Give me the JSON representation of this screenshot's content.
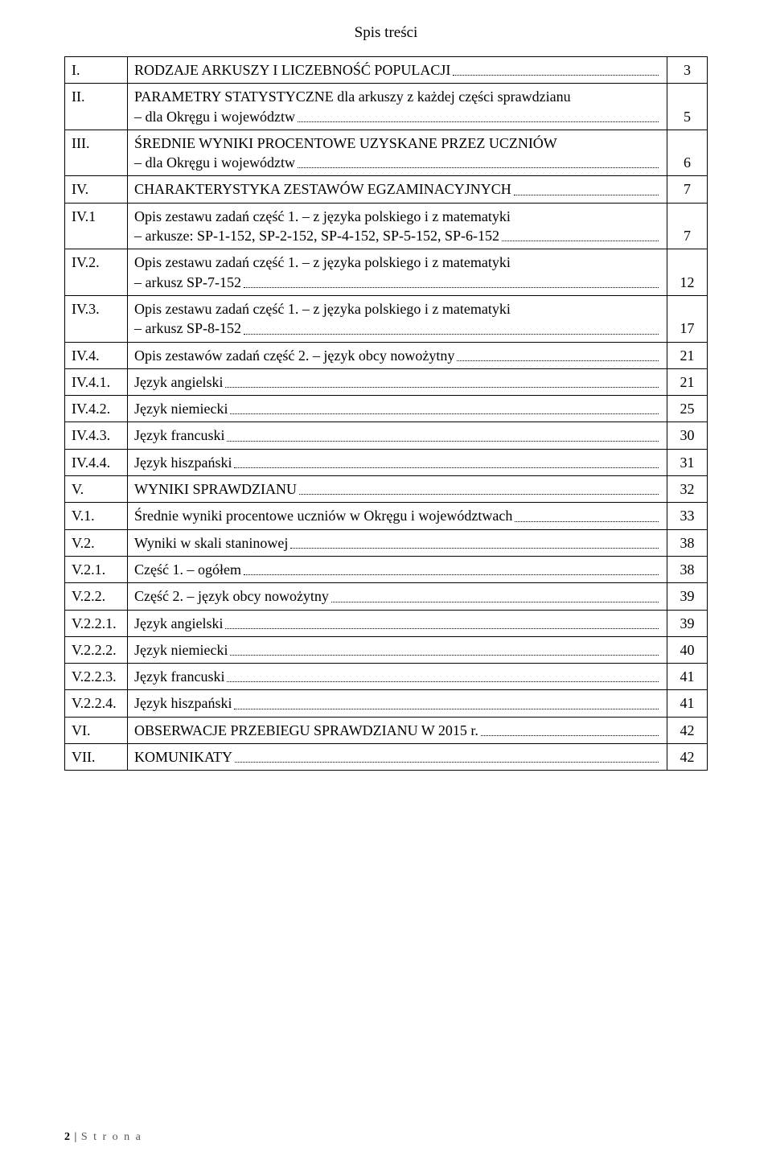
{
  "title": "Spis treści",
  "toc": [
    {
      "num": "I.",
      "text": "RODZAJE ARKUSZY I LICZEBNOŚĆ POPULACJI",
      "page": "3"
    },
    {
      "num": "II.",
      "text": "PARAMETRY STATYSTYCZNE dla arkuszy z każdej części sprawdzianu – dla Okręgu i województw",
      "page": "5",
      "wrap": true
    },
    {
      "num": "III.",
      "text": "ŚREDNIE WYNIKI PROCENTOWE UZYSKANE PRZEZ UCZNIÓW – dla Okręgu i województw",
      "page": "6",
      "wrap": true
    },
    {
      "num": "IV.",
      "text": "CHARAKTERYSTYKA ZESTAWÓW EGZAMINACYJNYCH",
      "page": "7"
    },
    {
      "num": "IV.1",
      "text": "Opis zestawu zadań część 1. – z języka polskiego i z matematyki – arkusze: SP-1-152, SP-2-152, SP-4-152, SP-5-152, SP-6-152",
      "page": "7",
      "wrap": true
    },
    {
      "num": "IV.2.",
      "text": "Opis zestawu zadań część 1. – z języka polskiego i z matematyki – arkusz SP-7-152",
      "page": "12",
      "wrap": true
    },
    {
      "num": "IV.3.",
      "text": "Opis zestawu zadań część 1. – z języka polskiego i z matematyki – arkusz SP-8-152",
      "page": "17",
      "wrap": true
    },
    {
      "num": "IV.4.",
      "text": "Opis zestawów zadań część 2. – język obcy nowożytny",
      "page": "21"
    },
    {
      "num": "IV.4.1.",
      "text": "Język angielski",
      "page": "21"
    },
    {
      "num": "IV.4.2.",
      "text": "Język niemiecki",
      "page": "25"
    },
    {
      "num": "IV.4.3.",
      "text": "Język francuski",
      "page": "30"
    },
    {
      "num": "IV.4.4.",
      "text": "Język hiszpański",
      "page": "31"
    },
    {
      "num": "V.",
      "text": "WYNIKI SPRAWDZIANU",
      "page": "32"
    },
    {
      "num": "V.1.",
      "text": "Średnie wyniki procentowe uczniów w Okręgu i województwach",
      "page": "33"
    },
    {
      "num": "V.2.",
      "text": "Wyniki w skali staninowej",
      "page": "38"
    },
    {
      "num": "V.2.1.",
      "text": "Część 1. – ogółem",
      "page": "38"
    },
    {
      "num": "V.2.2.",
      "text": "Część 2. – język obcy nowożytny",
      "page": "39"
    },
    {
      "num": "V.2.2.1.",
      "text": "Język angielski",
      "page": "39"
    },
    {
      "num": "V.2.2.2.",
      "text": "Język niemiecki",
      "page": "40"
    },
    {
      "num": "V.2.2.3.",
      "text": "Język francuski",
      "page": "41"
    },
    {
      "num": "V.2.2.4.",
      "text": "Język hiszpański",
      "page": "41"
    },
    {
      "num": "VI.",
      "text": "OBSERWACJE PRZEBIEGU SPRAWDZIANU W 2015 r.",
      "page": "42"
    },
    {
      "num": "VII.",
      "text": "KOMUNIKATY",
      "page": "42"
    }
  ],
  "footer": {
    "page": "2",
    "label": "S t r o n a"
  }
}
